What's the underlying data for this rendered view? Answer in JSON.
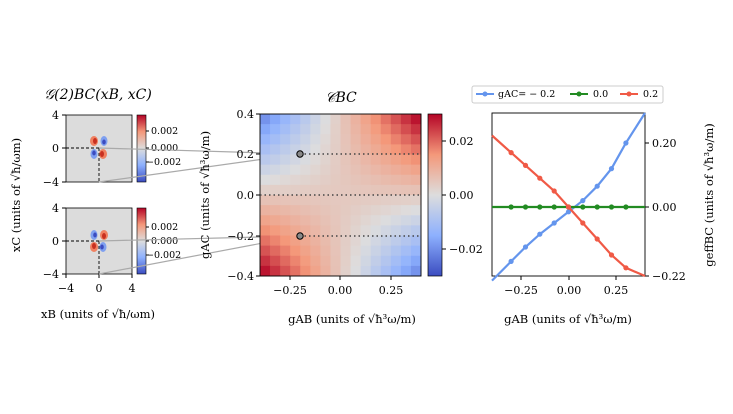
{
  "figure": {
    "left_panel": {
      "title": "𝒢(2)BC(xB, xC)",
      "xlabel": "xB  (units of √ħ/ωm)",
      "ylabel": "xC  (units of √ħ/ωm)",
      "ticks": [
        "4",
        "0",
        "−4"
      ],
      "xticks": [
        "−4",
        "0",
        "4"
      ],
      "colorbar_ticks": [
        "0.002",
        "0.000",
        "−0.002"
      ]
    },
    "middle_panel": {
      "title": "𝒞BC",
      "xlabel": "gAB  (units of √ħ³ω/m)",
      "ylabel": "gAC  (units of √ħ³ω/m)",
      "xticks": [
        "−0.25",
        "0.00",
        "0.25"
      ],
      "yticks": [
        "0.4",
        "0.2",
        "0.0",
        "−0.2",
        "−0.4"
      ],
      "colorbar_ticks": [
        "0.02",
        "0.00",
        "−0.02"
      ]
    },
    "right_panel": {
      "xlabel": "gAB  (units of √ħ³ω/m)",
      "ylabel": "geffBC  (units of √ħ³ω/m)",
      "xticks": [
        "−0.25",
        "0.00",
        "0.25"
      ],
      "yticks": [
        "0.20",
        "0.00",
        "−0.22"
      ],
      "legend": [
        "gAC= − 0.2",
        "0.0",
        "0.2"
      ]
    },
    "colors": {
      "blue": "#6495ED",
      "green": "#228B22",
      "red": "#F05A46"
    }
  },
  "chart_data": [
    {
      "type": "heatmap",
      "title": "𝒞BC",
      "xlabel": "gAB (units of √ħ³ω/m)",
      "ylabel": "gAC (units of √ħ³ω/m)",
      "xlim": [
        -0.4,
        0.4
      ],
      "ylim": [
        -0.4,
        0.4
      ],
      "colorbar_range": [
        -0.03,
        0.03
      ],
      "marked_points": [
        {
          "x": -0.2,
          "y": 0.2
        },
        {
          "x": -0.2,
          "y": -0.2
        }
      ],
      "dotted_lines_y": [
        0.2,
        0.0,
        -0.2
      ]
    },
    {
      "type": "line",
      "xlabel": "gAB (units of √ħ³ω/m)",
      "ylabel": "geffBC (units of √ħ³ω/m)",
      "xlim": [
        -0.4,
        0.4
      ],
      "ylim": [
        -0.22,
        0.3
      ],
      "legend_position": "top",
      "series": [
        {
          "name": "gAC= − 0.2",
          "x": [
            -0.3,
            -0.225,
            -0.15,
            -0.075,
            0.0,
            0.075,
            0.15,
            0.225,
            0.3
          ],
          "y": [
            -0.17,
            -0.125,
            -0.085,
            -0.05,
            -0.015,
            0.02,
            0.065,
            0.12,
            0.2
          ]
        },
        {
          "name": "0.0",
          "x": [
            -0.3,
            -0.225,
            -0.15,
            -0.075,
            0.0,
            0.075,
            0.15,
            0.225,
            0.3
          ],
          "y": [
            0,
            0,
            0,
            0,
            0,
            0,
            0,
            0,
            0
          ]
        },
        {
          "name": "0.2",
          "x": [
            -0.3,
            -0.225,
            -0.15,
            -0.075,
            0.0,
            0.075,
            0.15,
            0.225,
            0.3
          ],
          "y": [
            0.17,
            0.13,
            0.09,
            0.05,
            0.0,
            -0.05,
            -0.1,
            -0.15,
            -0.19
          ]
        }
      ]
    }
  ]
}
